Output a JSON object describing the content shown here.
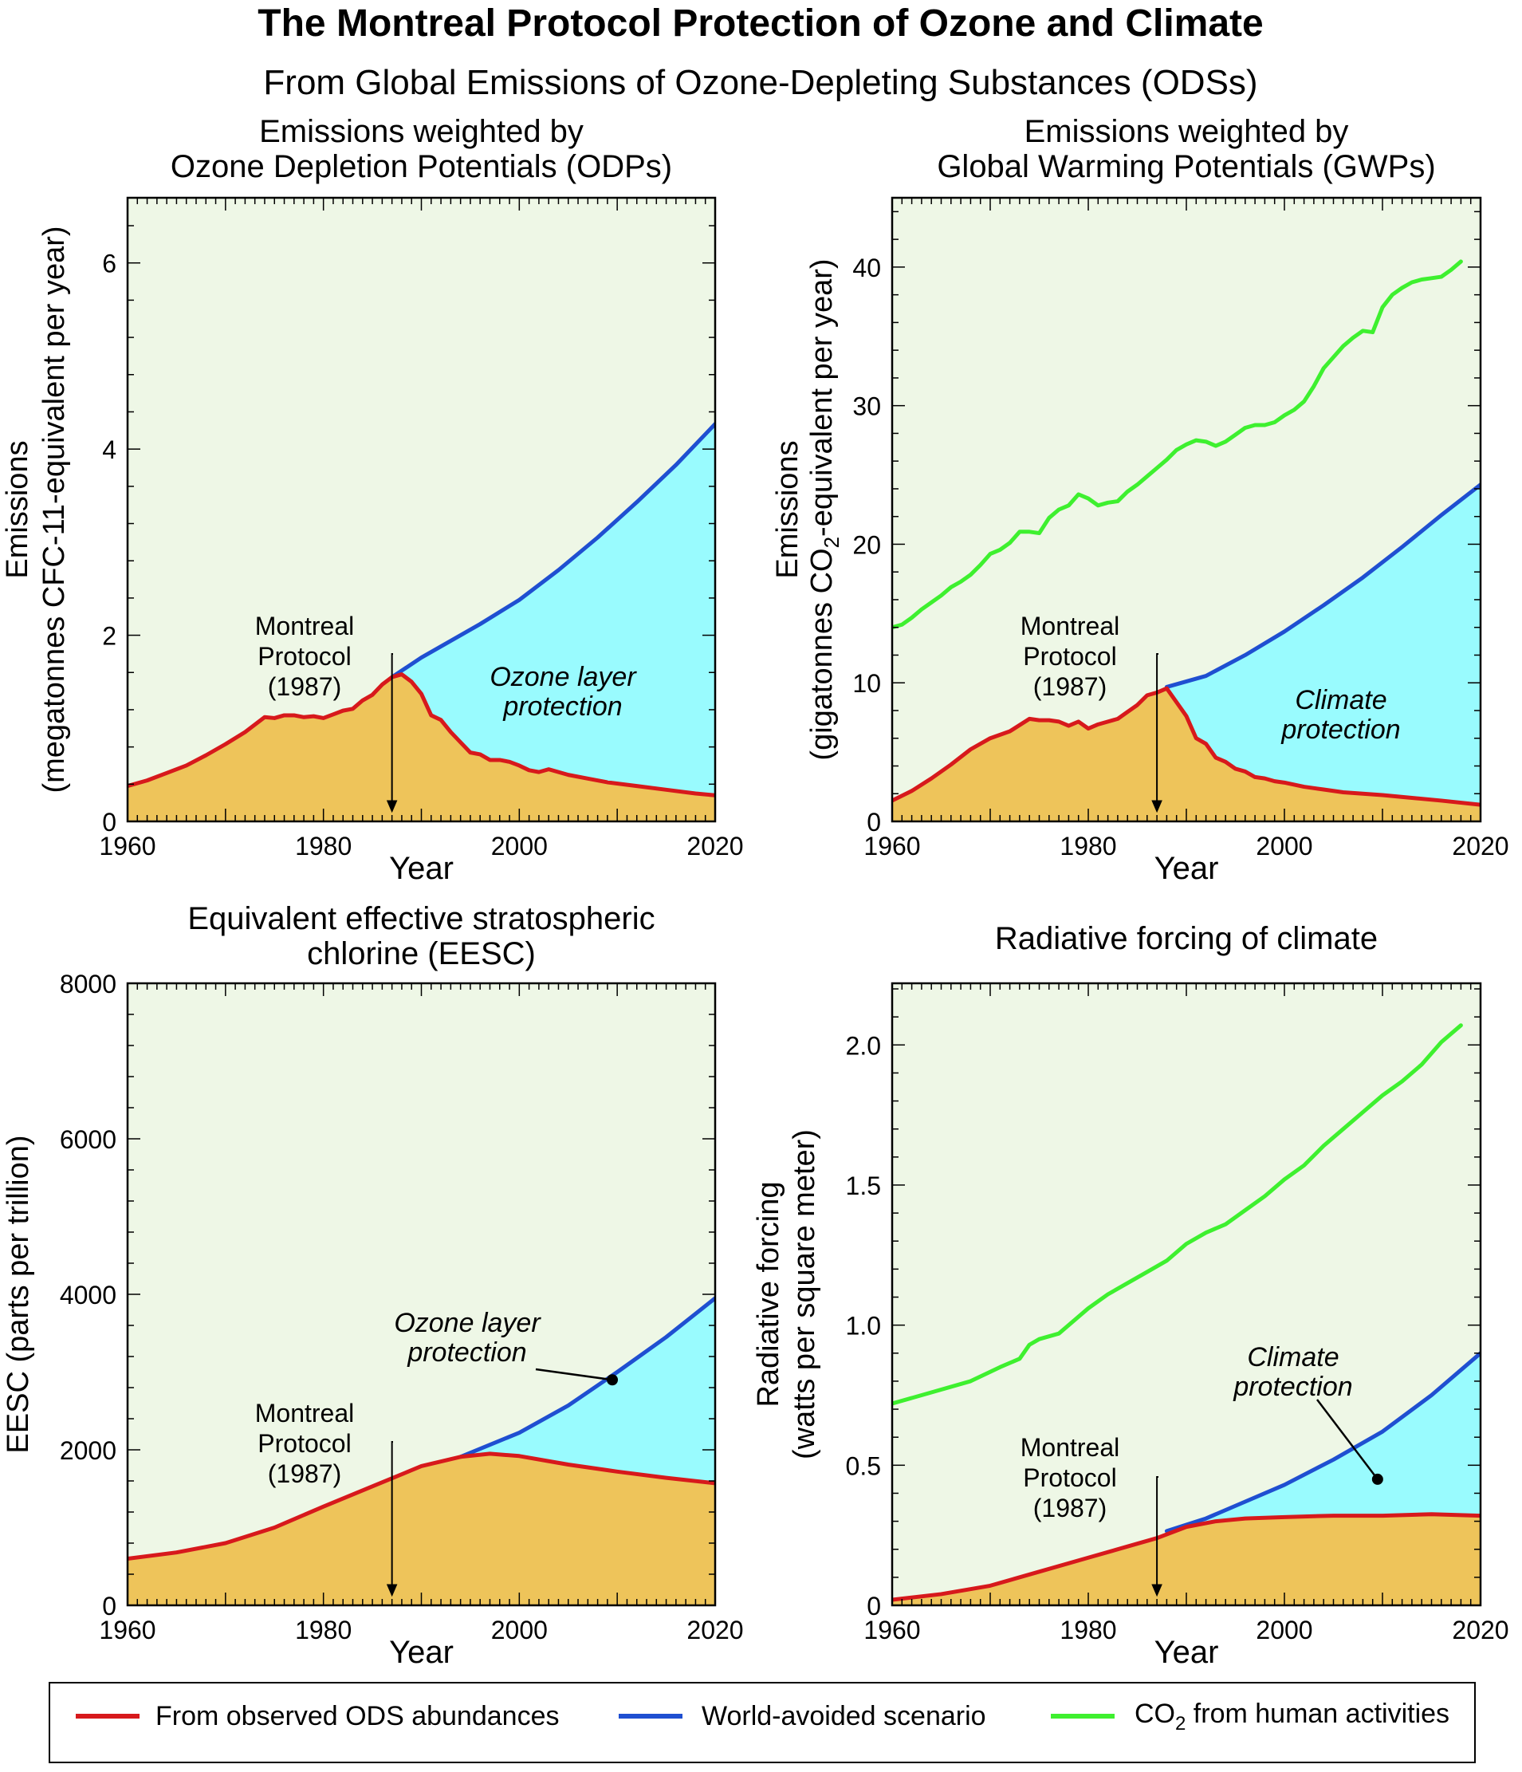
{
  "figure": {
    "title": "The Montreal Protocol Protection of Ozone and Climate",
    "subtitle": "From Global Emissions of Ozone-Depleting Substances (ODSs)"
  },
  "colors": {
    "background_fill": "#eef7e6",
    "odp_fill": "#eec45a",
    "protection_fill": "#99fbfe",
    "observed_line": "#d7191c",
    "avoided_line": "#1f4fd1",
    "co2_line": "#3ef02f"
  },
  "legend": {
    "observed": "From observed ODS abundances",
    "avoided": "World-avoided scenario",
    "co2_prefix": "CO",
    "co2_sub": "2",
    "co2_suffix": " from human activities"
  },
  "chart_data": [
    {
      "id": "odp",
      "type": "area",
      "title_lines": [
        "Emissions weighted by",
        "Ozone Depletion Potentials (ODPs)"
      ],
      "ylabel_lines": [
        "Emissions",
        "(megatonnes CFC-11-equivalent per year)"
      ],
      "xlabel": "Year",
      "xlim": [
        1960,
        2020
      ],
      "ylim": [
        0,
        6.7
      ],
      "xticks": [
        1960,
        1980,
        2000,
        2020
      ],
      "yticks": [
        0,
        2,
        4,
        6
      ],
      "ytick_labels": [
        "0",
        "2",
        "4",
        "6"
      ],
      "annotation_lines": [
        "Montreal",
        "Protocol",
        "(1987)"
      ],
      "protocol_year": 1987,
      "protection_label": [
        "Ozone layer",
        "protection"
      ],
      "series": [
        {
          "name": "From observed ODS abundances",
          "key": "observed",
          "x": [
            1960,
            1962,
            1964,
            1966,
            1968,
            1970,
            1972,
            1974,
            1975,
            1976,
            1977,
            1978,
            1979,
            1980,
            1981,
            1982,
            1983,
            1984,
            1985,
            1986,
            1987,
            1988,
            1989,
            1990,
            1991,
            1992,
            1993,
            1994,
            1995,
            1996,
            1997,
            1998,
            1999,
            2000,
            2001,
            2002,
            2003,
            2005,
            2007,
            2009,
            2012,
            2015,
            2018,
            2020
          ],
          "y": [
            0.38,
            0.44,
            0.52,
            0.6,
            0.71,
            0.83,
            0.96,
            1.12,
            1.11,
            1.14,
            1.14,
            1.12,
            1.13,
            1.11,
            1.15,
            1.19,
            1.21,
            1.3,
            1.36,
            1.47,
            1.55,
            1.58,
            1.5,
            1.37,
            1.14,
            1.09,
            0.96,
            0.85,
            0.74,
            0.72,
            0.66,
            0.66,
            0.64,
            0.6,
            0.55,
            0.53,
            0.56,
            0.5,
            0.46,
            0.42,
            0.38,
            0.34,
            0.3,
            0.28
          ]
        },
        {
          "name": "World-avoided scenario",
          "key": "avoided",
          "x": [
            1987,
            1990,
            1993,
            1996,
            2000,
            2004,
            2008,
            2012,
            2016,
            2020
          ],
          "y": [
            1.55,
            1.76,
            1.94,
            2.12,
            2.38,
            2.7,
            3.05,
            3.43,
            3.83,
            4.27
          ]
        }
      ]
    },
    {
      "id": "gwp",
      "type": "area",
      "title_lines": [
        "Emissions weighted by",
        "Global Warming Potentials (GWPs)"
      ],
      "ylabel_top": "Emissions",
      "ylabel_sub_prefix": "(gigatonnes CO",
      "ylabel_sub": "2",
      "ylabel_sub_suffix": "-equivalent per year)",
      "xlabel": "Year",
      "xlim": [
        1960,
        2020
      ],
      "ylim": [
        0,
        45
      ],
      "xticks": [
        1960,
        1980,
        2000,
        2020
      ],
      "yticks": [
        0,
        10,
        20,
        30,
        40
      ],
      "ytick_labels": [
        "0",
        "10",
        "20",
        "30",
        "40"
      ],
      "annotation_lines": [
        "Montreal",
        "Protocol",
        "(1987)"
      ],
      "protocol_year": 1987,
      "protection_label": [
        "Climate",
        "protection"
      ],
      "series": [
        {
          "name": "From observed ODS abundances",
          "key": "observed",
          "x": [
            1960,
            1962,
            1964,
            1966,
            1968,
            1970,
            1972,
            1974,
            1975,
            1976,
            1977,
            1978,
            1979,
            1980,
            1981,
            1982,
            1983,
            1984,
            1985,
            1986,
            1987,
            1988,
            1989,
            1990,
            1991,
            1992,
            1993,
            1994,
            1995,
            1996,
            1997,
            1998,
            1999,
            2000,
            2002,
            2004,
            2006,
            2008,
            2010,
            2013,
            2016,
            2020
          ],
          "y": [
            1.5,
            2.2,
            3.1,
            4.1,
            5.2,
            6.0,
            6.5,
            7.4,
            7.3,
            7.3,
            7.2,
            6.9,
            7.2,
            6.7,
            7.0,
            7.2,
            7.4,
            7.9,
            8.4,
            9.1,
            9.3,
            9.6,
            8.6,
            7.6,
            6.0,
            5.6,
            4.6,
            4.3,
            3.8,
            3.6,
            3.2,
            3.1,
            2.9,
            2.8,
            2.5,
            2.3,
            2.1,
            2.0,
            1.9,
            1.7,
            1.5,
            1.2
          ]
        },
        {
          "name": "World-avoided scenario",
          "key": "avoided",
          "x": [
            1988,
            1992,
            1996,
            2000,
            2004,
            2008,
            2012,
            2016,
            2020
          ],
          "y": [
            9.7,
            10.5,
            12.0,
            13.7,
            15.6,
            17.6,
            19.8,
            22.1,
            24.3
          ]
        },
        {
          "name": "CO2 from human activities",
          "key": "co2",
          "x": [
            1960,
            1961,
            1962,
            1963,
            1964,
            1965,
            1966,
            1967,
            1968,
            1969,
            1970,
            1971,
            1972,
            1973,
            1974,
            1975,
            1976,
            1977,
            1978,
            1979,
            1980,
            1981,
            1982,
            1983,
            1984,
            1985,
            1986,
            1987,
            1988,
            1989,
            1990,
            1991,
            1992,
            1993,
            1994,
            1995,
            1996,
            1997,
            1998,
            1999,
            2000,
            2001,
            2002,
            2003,
            2004,
            2005,
            2006,
            2007,
            2008,
            2009,
            2010,
            2011,
            2012,
            2013,
            2014,
            2015,
            2016,
            2017,
            2018
          ],
          "y": [
            14.0,
            14.2,
            14.7,
            15.3,
            15.8,
            16.3,
            16.9,
            17.3,
            17.8,
            18.5,
            19.3,
            19.6,
            20.1,
            20.9,
            20.9,
            20.8,
            21.9,
            22.5,
            22.8,
            23.6,
            23.3,
            22.8,
            23.0,
            23.1,
            23.8,
            24.3,
            24.9,
            25.5,
            26.1,
            26.8,
            27.2,
            27.5,
            27.4,
            27.1,
            27.4,
            27.9,
            28.4,
            28.6,
            28.6,
            28.8,
            29.3,
            29.7,
            30.3,
            31.4,
            32.7,
            33.5,
            34.3,
            34.9,
            35.4,
            35.3,
            37.1,
            38.0,
            38.5,
            38.9,
            39.1,
            39.2,
            39.3,
            39.8,
            40.4
          ]
        }
      ]
    },
    {
      "id": "eesc",
      "type": "area",
      "title_lines": [
        "Equivalent effective stratospheric",
        "chlorine (EESC)"
      ],
      "ylabel_lines": [
        "EESC (parts per trillion)"
      ],
      "xlabel": "Year",
      "xlim": [
        1960,
        2020
      ],
      "ylim": [
        0,
        8000
      ],
      "xticks": [
        1960,
        1980,
        2000,
        2020
      ],
      "yticks": [
        0,
        2000,
        4000,
        6000,
        8000
      ],
      "ytick_labels": [
        "0",
        "2000",
        "4000",
        "6000",
        "8000"
      ],
      "annotation_lines": [
        "Montreal",
        "Protocol",
        "(1987)"
      ],
      "protocol_year": 1987,
      "protection_label": [
        "Ozone layer",
        "protection"
      ],
      "pointer_target": [
        2009.5,
        2900
      ],
      "series": [
        {
          "name": "From observed ODS abundances",
          "key": "observed",
          "x": [
            1960,
            1965,
            1970,
            1975,
            1980,
            1985,
            1990,
            1994,
            1997,
            2000,
            2005,
            2010,
            2015,
            2020
          ],
          "y": [
            600,
            680,
            800,
            1000,
            1270,
            1530,
            1790,
            1910,
            1950,
            1920,
            1810,
            1720,
            1640,
            1570
          ]
        },
        {
          "name": "World-avoided scenario",
          "key": "avoided",
          "x": [
            1994,
            2000,
            2005,
            2010,
            2015,
            2020
          ],
          "y": [
            1910,
            2220,
            2570,
            3000,
            3450,
            3950
          ]
        }
      ]
    },
    {
      "id": "rf",
      "type": "area",
      "title_lines": [
        "Radiative forcing of climate"
      ],
      "ylabel_lines": [
        "Radiative forcing",
        "(watts per square meter)"
      ],
      "xlabel": "Year",
      "xlim": [
        1960,
        2020
      ],
      "ylim": [
        0,
        2.22
      ],
      "xticks": [
        1960,
        1980,
        2000,
        2020
      ],
      "yticks": [
        0,
        0.5,
        1.0,
        1.5,
        2.0
      ],
      "ytick_labels": [
        "0",
        "0.5",
        "1.0",
        "1.5",
        "2.0"
      ],
      "annotation_lines": [
        "Montreal",
        "Protocol",
        "(1987)"
      ],
      "protocol_year": 1987,
      "protection_label": [
        "Climate",
        "protection"
      ],
      "pointer_target": [
        2009.5,
        0.45
      ],
      "series": [
        {
          "name": "From observed ODS abundances",
          "key": "observed",
          "x": [
            1960,
            1965,
            1970,
            1975,
            1980,
            1985,
            1987,
            1990,
            1993,
            1996,
            2000,
            2005,
            2010,
            2015,
            2020
          ],
          "y": [
            0.02,
            0.04,
            0.07,
            0.12,
            0.17,
            0.22,
            0.24,
            0.28,
            0.3,
            0.31,
            0.315,
            0.32,
            0.32,
            0.325,
            0.32
          ]
        },
        {
          "name": "World-avoided scenario",
          "key": "avoided",
          "x": [
            1988,
            1992,
            1996,
            2000,
            2005,
            2010,
            2015,
            2020
          ],
          "y": [
            0.265,
            0.31,
            0.37,
            0.43,
            0.52,
            0.62,
            0.75,
            0.9
          ]
        },
        {
          "name": "CO2 from human activities",
          "key": "co2",
          "x": [
            1960,
            1964,
            1968,
            1971,
            1973,
            1974,
            1975,
            1977,
            1980,
            1982,
            1984,
            1986,
            1988,
            1990,
            1992,
            1994,
            1996,
            1998,
            2000,
            2002,
            2004,
            2006,
            2008,
            2010,
            2012,
            2014,
            2016,
            2018
          ],
          "y": [
            0.72,
            0.76,
            0.8,
            0.85,
            0.88,
            0.93,
            0.95,
            0.97,
            1.06,
            1.11,
            1.15,
            1.19,
            1.23,
            1.29,
            1.33,
            1.36,
            1.41,
            1.46,
            1.52,
            1.57,
            1.64,
            1.7,
            1.76,
            1.82,
            1.87,
            1.93,
            2.01,
            2.07
          ]
        }
      ]
    }
  ]
}
